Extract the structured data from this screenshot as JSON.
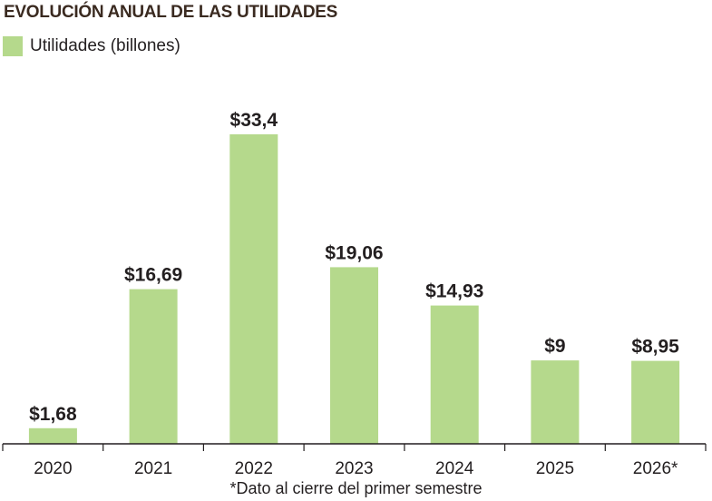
{
  "colors": {
    "bar": "#b5d98c",
    "axis": "#231f20",
    "title": "#3a2a20"
  },
  "chart_data": {
    "type": "bar",
    "title": "EVOLUCIÓN ANUAL DE LAS UTILIDADES",
    "legend": "Utilidades (billones)",
    "legend_position": "top-left",
    "grid": false,
    "categories": [
      "2020",
      "2021",
      "2022",
      "2023",
      "2024",
      "2025",
      "2026*"
    ],
    "series": [
      {
        "name": "Utilidades (billones)",
        "values": [
          1.68,
          16.69,
          33.4,
          19.06,
          14.93,
          9,
          8.95
        ],
        "labels": [
          "$1,68",
          "$16,69",
          "$33,4",
          "$19,06",
          "$14,93",
          "$9",
          "$8,95"
        ]
      }
    ],
    "ylim": [
      0,
      33.4
    ],
    "footnote": "*Dato al cierre del primer semestre"
  }
}
